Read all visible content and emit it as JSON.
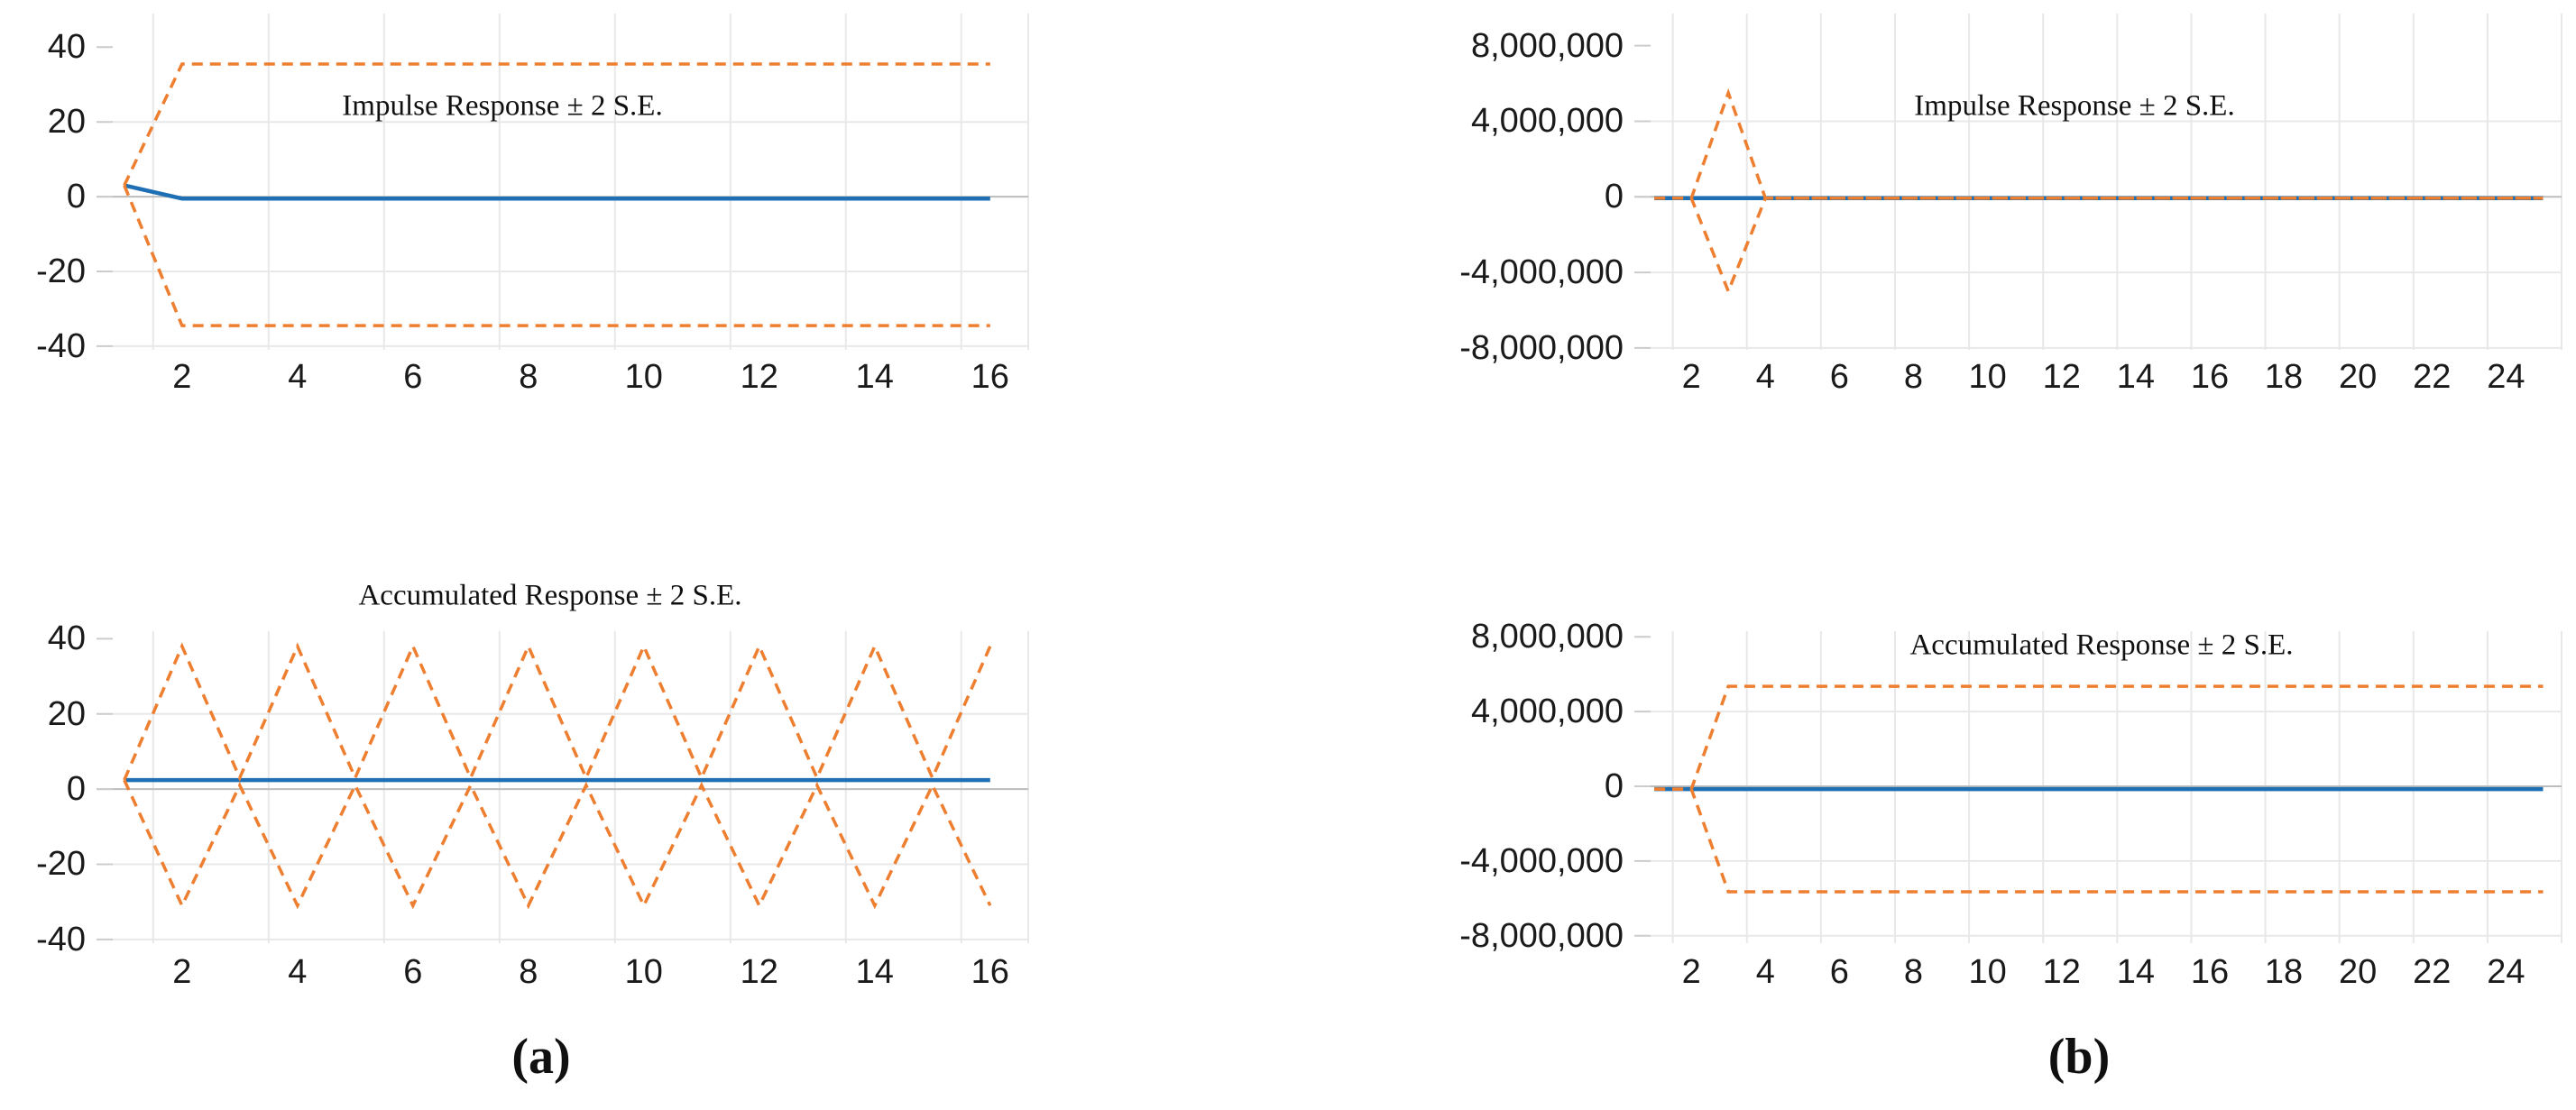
{
  "figure": {
    "panel_a_label": "(a)",
    "panel_b_label": "(b)",
    "colors": {
      "response_line": "#1f6fb4",
      "band_line": "#ee7e30",
      "gridline": "#e8e8e8",
      "zero_line": "#bdbdbd",
      "tick_text": "#1a1a1a"
    }
  },
  "chart_data": [
    {
      "id": "impulse-a",
      "type": "line",
      "panel": "a",
      "title": "Impulse Response ± 2 S.E.",
      "x": [
        1,
        2,
        3,
        4,
        5,
        6,
        7,
        8,
        9,
        10,
        11,
        12,
        13,
        14,
        15,
        16
      ],
      "xticks": [
        2,
        4,
        6,
        8,
        10,
        12,
        14,
        16
      ],
      "xmin": 0.8,
      "xmax": 16.66,
      "ymin": -41,
      "ymax": 49,
      "yticks": [
        {
          "v": 40,
          "label": "40"
        },
        {
          "v": 20,
          "label": "20"
        },
        {
          "v": 0,
          "label": "0"
        },
        {
          "v": -20,
          "label": "-20"
        },
        {
          "v": -40,
          "label": "-40"
        }
      ],
      "series": [
        {
          "name": "Impulse Response",
          "role": "response",
          "line": "solid",
          "color": "#1f6fb4",
          "values": [
            3,
            -0.5,
            -0.5,
            -0.5,
            -0.5,
            -0.5,
            -0.5,
            -0.5,
            -0.5,
            -0.5,
            -0.5,
            -0.5,
            -0.5,
            -0.5,
            -0.5,
            -0.5
          ]
        },
        {
          "name": "+2 S.E.",
          "role": "upper-band",
          "line": "dashed",
          "color": "#ee7e30",
          "values": [
            3,
            35.5,
            35.5,
            35.5,
            35.5,
            35.5,
            35.5,
            35.5,
            35.5,
            35.5,
            35.5,
            35.5,
            35.5,
            35.5,
            35.5,
            35.5
          ]
        },
        {
          "name": "-2 S.E.",
          "role": "lower-band",
          "line": "dashed",
          "color": "#ee7e30",
          "values": [
            3,
            -34.5,
            -34.5,
            -34.5,
            -34.5,
            -34.5,
            -34.5,
            -34.5,
            -34.5,
            -34.5,
            -34.5,
            -34.5,
            -34.5,
            -34.5,
            -34.5,
            -34.5
          ]
        }
      ]
    },
    {
      "id": "accum-a",
      "type": "line",
      "panel": "a",
      "title": "Accumulated Response ± 2 S.E.",
      "x": [
        1,
        2,
        3,
        4,
        5,
        6,
        7,
        8,
        9,
        10,
        11,
        12,
        13,
        14,
        15,
        16
      ],
      "xticks": [
        2,
        4,
        6,
        8,
        10,
        12,
        14,
        16
      ],
      "xmin": 0.8,
      "xmax": 16.66,
      "ymin": -41,
      "ymax": 42,
      "yticks": [
        {
          "v": 40,
          "label": "40"
        },
        {
          "v": 20,
          "label": "20"
        },
        {
          "v": 0,
          "label": "0"
        },
        {
          "v": -20,
          "label": "-20"
        },
        {
          "v": -40,
          "label": "-40"
        }
      ],
      "series": [
        {
          "name": "Accumulated Response",
          "role": "response",
          "line": "solid",
          "color": "#1f6fb4",
          "values": [
            2.4,
            2.4,
            2.4,
            2.4,
            2.4,
            2.4,
            2.4,
            2.4,
            2.4,
            2.4,
            2.4,
            2.4,
            2.4,
            2.4,
            2.4,
            2.4
          ]
        },
        {
          "name": "+2 S.E.",
          "role": "upper-band",
          "line": "dashed",
          "color": "#ee7e30",
          "values": [
            2.4,
            38,
            3,
            38,
            3,
            38,
            3,
            38,
            3,
            38,
            3,
            38,
            3,
            38,
            3,
            38
          ]
        },
        {
          "name": "-2 S.E.",
          "role": "lower-band",
          "line": "dashed",
          "color": "#ee7e30",
          "values": [
            2.4,
            -31,
            1,
            -31,
            1,
            -31,
            1,
            -31,
            1,
            -31,
            1,
            -31,
            1,
            -31,
            1,
            -31
          ]
        }
      ]
    },
    {
      "id": "impulse-b",
      "type": "line",
      "panel": "b",
      "title": "Impulse Response ± 2 S.E.",
      "x": [
        1,
        2,
        3,
        4,
        5,
        6,
        7,
        8,
        9,
        10,
        11,
        12,
        13,
        14,
        15,
        16,
        17,
        18,
        19,
        20,
        21,
        22,
        23,
        24,
        25
      ],
      "xticks": [
        2,
        4,
        6,
        8,
        10,
        12,
        14,
        16,
        18,
        20,
        22,
        24
      ],
      "xmin": 0.9,
      "xmax": 25.5,
      "ymin": -8100000,
      "ymax": 9700000,
      "yticks": [
        {
          "v": 8000000,
          "label": "8,000,000"
        },
        {
          "v": 4000000,
          "label": "4,000,000"
        },
        {
          "v": 0,
          "label": "0"
        },
        {
          "v": -4000000,
          "label": "-4,000,000"
        },
        {
          "v": -8000000,
          "label": "-8,000,000"
        }
      ],
      "series": [
        {
          "name": "Impulse Response",
          "role": "response",
          "line": "solid",
          "color": "#1f6fb4",
          "values": [
            -75000,
            -75000,
            -75000,
            -75000,
            -75000,
            -75000,
            -75000,
            -75000,
            -75000,
            -75000,
            -75000,
            -75000,
            -75000,
            -75000,
            -75000,
            -75000,
            -75000,
            -75000,
            -75000,
            -75000,
            -75000,
            -75000,
            -75000,
            -75000,
            -75000
          ]
        },
        {
          "name": "+2 S.E.",
          "role": "upper-band",
          "line": "dashed",
          "color": "#ee7e30",
          "values": [
            -75000,
            -75000,
            5500000,
            -75000,
            -75000,
            -75000,
            -75000,
            -75000,
            -75000,
            -75000,
            -75000,
            -75000,
            -75000,
            -75000,
            -75000,
            -75000,
            -75000,
            -75000,
            -75000,
            -75000,
            -75000,
            -75000,
            -75000,
            -75000,
            -75000
          ]
        },
        {
          "name": "-2 S.E.",
          "role": "lower-band",
          "line": "dashed",
          "color": "#ee7e30",
          "values": [
            -75000,
            -75000,
            -5000000,
            -75000,
            -75000,
            -75000,
            -75000,
            -75000,
            -75000,
            -75000,
            -75000,
            -75000,
            -75000,
            -75000,
            -75000,
            -75000,
            -75000,
            -75000,
            -75000,
            -75000,
            -75000,
            -75000,
            -75000,
            -75000,
            -75000
          ]
        }
      ]
    },
    {
      "id": "accum-b",
      "type": "line",
      "panel": "b",
      "title": "Accumulated Response ± 2 S.E.",
      "x": [
        1,
        2,
        3,
        4,
        5,
        6,
        7,
        8,
        9,
        10,
        11,
        12,
        13,
        14,
        15,
        16,
        17,
        18,
        19,
        20,
        21,
        22,
        23,
        24,
        25
      ],
      "xticks": [
        2,
        4,
        6,
        8,
        10,
        12,
        14,
        16,
        18,
        20,
        22,
        24
      ],
      "xmin": 0.9,
      "xmax": 25.5,
      "ymin": -8400000,
      "ymax": 8300000,
      "yticks": [
        {
          "v": 8000000,
          "label": "8,000,000"
        },
        {
          "v": 4000000,
          "label": "4,000,000"
        },
        {
          "v": 0,
          "label": "0"
        },
        {
          "v": -4000000,
          "label": "-4,000,000"
        },
        {
          "v": -8000000,
          "label": "-8,000,000"
        }
      ],
      "series": [
        {
          "name": "Accumulated Response",
          "role": "response",
          "line": "solid",
          "color": "#1f6fb4",
          "values": [
            -150000,
            -150000,
            -150000,
            -150000,
            -150000,
            -150000,
            -150000,
            -150000,
            -150000,
            -150000,
            -150000,
            -150000,
            -150000,
            -150000,
            -150000,
            -150000,
            -150000,
            -150000,
            -150000,
            -150000,
            -150000,
            -150000,
            -150000,
            -150000,
            -150000
          ]
        },
        {
          "name": "+2 S.E.",
          "role": "upper-band",
          "line": "dashed",
          "color": "#ee7e30",
          "values": [
            -150000,
            -150000,
            5350000,
            5350000,
            5350000,
            5350000,
            5350000,
            5350000,
            5350000,
            5350000,
            5350000,
            5350000,
            5350000,
            5350000,
            5350000,
            5350000,
            5350000,
            5350000,
            5350000,
            5350000,
            5350000,
            5350000,
            5350000,
            5350000,
            5350000
          ]
        },
        {
          "name": "-2 S.E.",
          "role": "lower-band",
          "line": "dashed",
          "color": "#ee7e30",
          "values": [
            -150000,
            -150000,
            -5650000,
            -5650000,
            -5650000,
            -5650000,
            -5650000,
            -5650000,
            -5650000,
            -5650000,
            -5650000,
            -5650000,
            -5650000,
            -5650000,
            -5650000,
            -5650000,
            -5650000,
            -5650000,
            -5650000,
            -5650000,
            -5650000,
            -5650000,
            -5650000,
            -5650000,
            -5650000
          ]
        }
      ]
    }
  ]
}
